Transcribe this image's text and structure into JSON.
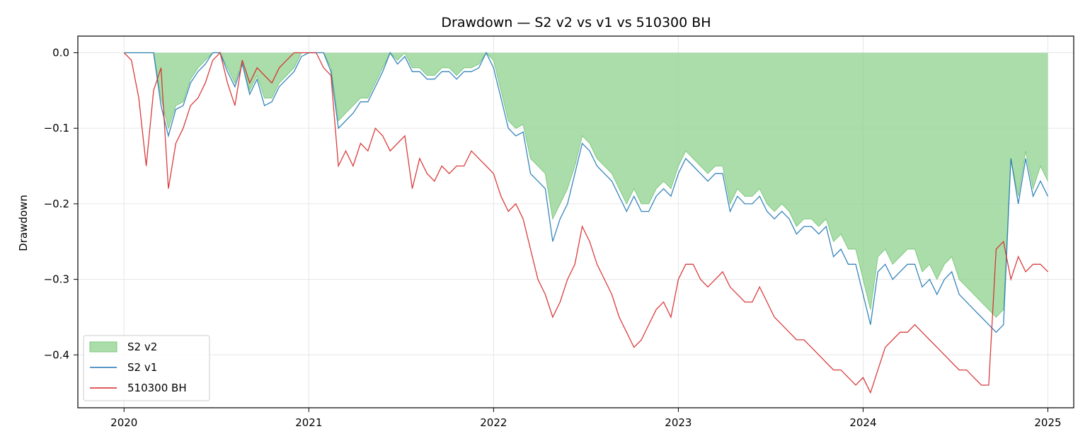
{
  "chart_data": {
    "type": "area",
    "title": "Drawdown — S2 v2 vs v1 vs 510300 BH",
    "xlabel": "",
    "ylabel": "Drawdown",
    "xlim": [
      2019.75,
      2025.14
    ],
    "ylim": [
      -0.47,
      0.022
    ],
    "x_ticks": [
      2020,
      2021,
      2022,
      2023,
      2024,
      2025
    ],
    "x_tick_labels": [
      "2020",
      "2021",
      "2022",
      "2023",
      "2024",
      "2025"
    ],
    "y_ticks": [
      0.0,
      -0.1,
      -0.2,
      -0.3,
      -0.4
    ],
    "y_tick_labels": [
      "0.0",
      "−0.1",
      "−0.2",
      "−0.3",
      "−0.4"
    ],
    "grid": true,
    "legend_position": "lower-left",
    "x": [
      2020.0,
      2020.04,
      2020.08,
      2020.12,
      2020.16,
      2020.2,
      2020.24,
      2020.28,
      2020.32,
      2020.36,
      2020.4,
      2020.44,
      2020.48,
      2020.52,
      2020.56,
      2020.6,
      2020.64,
      2020.68,
      2020.72,
      2020.76,
      2020.8,
      2020.84,
      2020.88,
      2020.92,
      2020.96,
      2021.0,
      2021.04,
      2021.08,
      2021.12,
      2021.16,
      2021.2,
      2021.24,
      2021.28,
      2021.32,
      2021.36,
      2021.4,
      2021.44,
      2021.48,
      2021.52,
      2021.56,
      2021.6,
      2021.64,
      2021.68,
      2021.72,
      2021.76,
      2021.8,
      2021.84,
      2021.88,
      2021.92,
      2021.96,
      2022.0,
      2022.04,
      2022.08,
      2022.12,
      2022.16,
      2022.2,
      2022.24,
      2022.28,
      2022.32,
      2022.36,
      2022.4,
      2022.44,
      2022.48,
      2022.52,
      2022.56,
      2022.6,
      2022.64,
      2022.68,
      2022.72,
      2022.76,
      2022.8,
      2022.84,
      2022.88,
      2022.92,
      2022.96,
      2023.0,
      2023.04,
      2023.08,
      2023.12,
      2023.16,
      2023.2,
      2023.24,
      2023.28,
      2023.32,
      2023.36,
      2023.4,
      2023.44,
      2023.48,
      2023.52,
      2023.56,
      2023.6,
      2023.64,
      2023.68,
      2023.72,
      2023.76,
      2023.8,
      2023.84,
      2023.88,
      2023.92,
      2023.96,
      2024.0,
      2024.04,
      2024.08,
      2024.12,
      2024.16,
      2024.2,
      2024.24,
      2024.28,
      2024.32,
      2024.36,
      2024.4,
      2024.44,
      2024.48,
      2024.52,
      2024.56,
      2024.6,
      2024.64,
      2024.68,
      2024.72,
      2024.76,
      2024.8,
      2024.84,
      2024.88,
      2024.92,
      2024.96,
      2025.0
    ],
    "series": [
      {
        "name": "S2 v2",
        "style": "fill",
        "color": "#8fd18f",
        "edge_color": "#7fc97f",
        "values": [
          0.0,
          0.0,
          0.0,
          0.0,
          0.0,
          -0.06,
          -0.1,
          -0.07,
          -0.065,
          -0.035,
          -0.02,
          -0.01,
          0.0,
          0.0,
          -0.02,
          -0.04,
          -0.01,
          -0.05,
          -0.03,
          -0.06,
          -0.06,
          -0.04,
          -0.03,
          -0.02,
          0.0,
          0.0,
          0.0,
          0.0,
          -0.02,
          -0.09,
          -0.08,
          -0.07,
          -0.06,
          -0.06,
          -0.04,
          -0.02,
          0.0,
          -0.01,
          0.0,
          -0.02,
          -0.02,
          -0.03,
          -0.03,
          -0.02,
          -0.02,
          -0.03,
          -0.02,
          -0.02,
          -0.015,
          0.0,
          -0.01,
          -0.05,
          -0.09,
          -0.1,
          -0.095,
          -0.14,
          -0.15,
          -0.16,
          -0.22,
          -0.2,
          -0.18,
          -0.15,
          -0.11,
          -0.12,
          -0.14,
          -0.15,
          -0.16,
          -0.18,
          -0.2,
          -0.18,
          -0.2,
          -0.2,
          -0.18,
          -0.17,
          -0.18,
          -0.15,
          -0.13,
          -0.14,
          -0.15,
          -0.16,
          -0.15,
          -0.15,
          -0.2,
          -0.18,
          -0.19,
          -0.19,
          -0.18,
          -0.2,
          -0.21,
          -0.2,
          -0.21,
          -0.23,
          -0.22,
          -0.22,
          -0.23,
          -0.22,
          -0.25,
          -0.24,
          -0.26,
          -0.26,
          -0.3,
          -0.34,
          -0.27,
          -0.26,
          -0.28,
          -0.27,
          -0.26,
          -0.26,
          -0.29,
          -0.28,
          -0.3,
          -0.28,
          -0.27,
          -0.3,
          -0.31,
          -0.32,
          -0.33,
          -0.34,
          -0.35,
          -0.34,
          -0.14,
          -0.19,
          -0.13,
          -0.18,
          -0.15,
          -0.17
        ]
      },
      {
        "name": "S2 v1",
        "style": "line",
        "color": "#1f77b4",
        "values": [
          0.0,
          0.0,
          0.0,
          0.0,
          0.0,
          -0.07,
          -0.11,
          -0.075,
          -0.07,
          -0.04,
          -0.025,
          -0.015,
          0.0,
          0.0,
          -0.025,
          -0.045,
          -0.015,
          -0.055,
          -0.035,
          -0.07,
          -0.065,
          -0.045,
          -0.035,
          -0.025,
          -0.005,
          0.0,
          0.0,
          0.0,
          -0.025,
          -0.1,
          -0.09,
          -0.08,
          -0.065,
          -0.065,
          -0.045,
          -0.025,
          0.0,
          -0.015,
          -0.005,
          -0.025,
          -0.025,
          -0.035,
          -0.035,
          -0.025,
          -0.025,
          -0.035,
          -0.025,
          -0.025,
          -0.02,
          0.0,
          -0.02,
          -0.06,
          -0.1,
          -0.11,
          -0.105,
          -0.16,
          -0.17,
          -0.18,
          -0.25,
          -0.22,
          -0.2,
          -0.16,
          -0.12,
          -0.13,
          -0.15,
          -0.16,
          -0.17,
          -0.19,
          -0.21,
          -0.19,
          -0.21,
          -0.21,
          -0.19,
          -0.18,
          -0.19,
          -0.16,
          -0.14,
          -0.15,
          -0.16,
          -0.17,
          -0.16,
          -0.16,
          -0.21,
          -0.19,
          -0.2,
          -0.2,
          -0.19,
          -0.21,
          -0.22,
          -0.21,
          -0.22,
          -0.24,
          -0.23,
          -0.23,
          -0.24,
          -0.23,
          -0.27,
          -0.26,
          -0.28,
          -0.28,
          -0.32,
          -0.36,
          -0.29,
          -0.28,
          -0.3,
          -0.29,
          -0.28,
          -0.28,
          -0.31,
          -0.3,
          -0.32,
          -0.3,
          -0.29,
          -0.32,
          -0.33,
          -0.34,
          -0.35,
          -0.36,
          -0.37,
          -0.36,
          -0.14,
          -0.2,
          -0.14,
          -0.19,
          -0.17,
          -0.19
        ]
      },
      {
        "name": "510300 BH",
        "style": "line",
        "color": "#d62728",
        "values": [
          0.0,
          -0.01,
          -0.06,
          -0.15,
          -0.05,
          -0.02,
          -0.18,
          -0.12,
          -0.1,
          -0.07,
          -0.06,
          -0.04,
          -0.01,
          0.0,
          -0.04,
          -0.07,
          -0.01,
          -0.04,
          -0.02,
          -0.03,
          -0.04,
          -0.02,
          -0.01,
          0.0,
          0.0,
          0.0,
          0.0,
          -0.02,
          -0.03,
          -0.15,
          -0.13,
          -0.15,
          -0.12,
          -0.13,
          -0.1,
          -0.11,
          -0.13,
          -0.12,
          -0.11,
          -0.18,
          -0.14,
          -0.16,
          -0.17,
          -0.15,
          -0.16,
          -0.15,
          -0.15,
          -0.13,
          -0.14,
          -0.15,
          -0.16,
          -0.19,
          -0.21,
          -0.2,
          -0.22,
          -0.26,
          -0.3,
          -0.32,
          -0.35,
          -0.33,
          -0.3,
          -0.28,
          -0.23,
          -0.25,
          -0.28,
          -0.3,
          -0.32,
          -0.35,
          -0.37,
          -0.39,
          -0.38,
          -0.36,
          -0.34,
          -0.33,
          -0.35,
          -0.3,
          -0.28,
          -0.28,
          -0.3,
          -0.31,
          -0.3,
          -0.29,
          -0.31,
          -0.32,
          -0.33,
          -0.33,
          -0.31,
          -0.33,
          -0.35,
          -0.36,
          -0.37,
          -0.38,
          -0.38,
          -0.39,
          -0.4,
          -0.41,
          -0.42,
          -0.42,
          -0.43,
          -0.44,
          -0.43,
          -0.45,
          -0.42,
          -0.39,
          -0.38,
          -0.37,
          -0.37,
          -0.36,
          -0.37,
          -0.38,
          -0.39,
          -0.4,
          -0.41,
          -0.42,
          -0.42,
          -0.43,
          -0.44,
          -0.44,
          -0.26,
          -0.25,
          -0.3,
          -0.27,
          -0.29,
          -0.28,
          -0.28,
          -0.29
        ]
      }
    ]
  }
}
